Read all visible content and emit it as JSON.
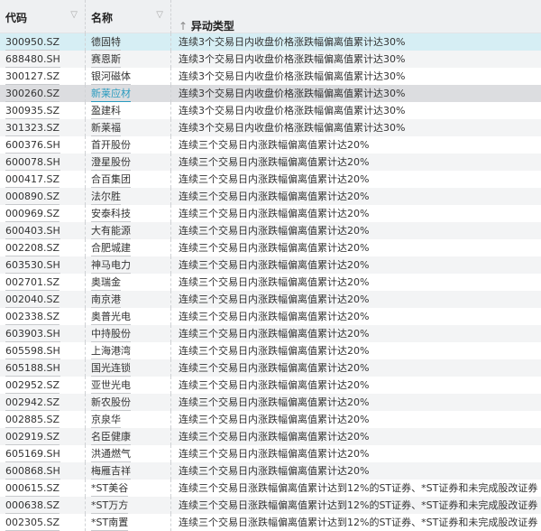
{
  "header": {
    "code": "代码",
    "name": "名称",
    "type": "异动类型",
    "sort_icon": "arrow-up-icon",
    "filter_icon": "filter-icon"
  },
  "rows": [
    [
      "300950.SZ",
      "德固特",
      "连续3个交易日内收盘价格涨跌幅偏离值累计达30%"
    ],
    [
      "688480.SH",
      "赛恩斯",
      "连续3个交易日内收盘价格涨跌幅偏离值累计达30%"
    ],
    [
      "300127.SZ",
      "银河磁体",
      "连续3个交易日内收盘价格涨跌幅偏离值累计达30%"
    ],
    [
      "300260.SZ",
      "新莱应材",
      "连续3个交易日内收盘价格涨跌幅偏离值累计达30%"
    ],
    [
      "300935.SZ",
      "盈建科",
      "连续3个交易日内收盘价格涨跌幅偏离值累计达30%"
    ],
    [
      "301323.SZ",
      "新莱福",
      "连续3个交易日内收盘价格涨跌幅偏离值累计达30%"
    ],
    [
      "600376.SH",
      "首开股份",
      "连续三个交易日内涨跌幅偏离值累计达20%"
    ],
    [
      "600078.SH",
      "澄星股份",
      "连续三个交易日内涨跌幅偏离值累计达20%"
    ],
    [
      "000417.SZ",
      "合百集团",
      "连续三个交易日内涨跌幅偏离值累计达20%"
    ],
    [
      "000890.SZ",
      "法尔胜",
      "连续三个交易日内涨跌幅偏离值累计达20%"
    ],
    [
      "000969.SZ",
      "安泰科技",
      "连续三个交易日内涨跌幅偏离值累计达20%"
    ],
    [
      "600403.SH",
      "大有能源",
      "连续三个交易日内涨跌幅偏离值累计达20%"
    ],
    [
      "002208.SZ",
      "合肥城建",
      "连续三个交易日内涨跌幅偏离值累计达20%"
    ],
    [
      "603530.SH",
      "神马电力",
      "连续三个交易日内涨跌幅偏离值累计达20%"
    ],
    [
      "002701.SZ",
      "奥瑞金",
      "连续三个交易日内涨跌幅偏离值累计达20%"
    ],
    [
      "002040.SZ",
      "南京港",
      "连续三个交易日内涨跌幅偏离值累计达20%"
    ],
    [
      "002338.SZ",
      "奥普光电",
      "连续三个交易日内涨跌幅偏离值累计达20%"
    ],
    [
      "603903.SH",
      "中持股份",
      "连续三个交易日内涨跌幅偏离值累计达20%"
    ],
    [
      "605598.SH",
      "上海港湾",
      "连续三个交易日内涨跌幅偏离值累计达20%"
    ],
    [
      "605188.SH",
      "国光连锁",
      "连续三个交易日内涨跌幅偏离值累计达20%"
    ],
    [
      "002952.SZ",
      "亚世光电",
      "连续三个交易日内涨跌幅偏离值累计达20%"
    ],
    [
      "002942.SZ",
      "新农股份",
      "连续三个交易日内涨跌幅偏离值累计达20%"
    ],
    [
      "002885.SZ",
      "京泉华",
      "连续三个交易日内涨跌幅偏离值累计达20%"
    ],
    [
      "002919.SZ",
      "名臣健康",
      "连续三个交易日内涨跌幅偏离值累计达20%"
    ],
    [
      "605169.SH",
      "洪通燃气",
      "连续三个交易日内涨跌幅偏离值累计达20%"
    ],
    [
      "600868.SH",
      "梅雁吉祥",
      "连续三个交易日内涨跌幅偏离值累计达20%"
    ],
    [
      "000615.SZ",
      "*ST美谷",
      "连续三个交易日涨跌幅偏离值累计达到12%的ST证券、*ST证券和未完成股改证券"
    ],
    [
      "000638.SZ",
      "*ST万方",
      "连续三个交易日涨跌幅偏离值累计达到12%的ST证券、*ST证券和未完成股改证券"
    ],
    [
      "002305.SZ",
      "*ST南置",
      "连续三个交易日涨跌幅偏离值累计达到12%的ST证券、*ST证券和未完成股改证券"
    ]
  ]
}
